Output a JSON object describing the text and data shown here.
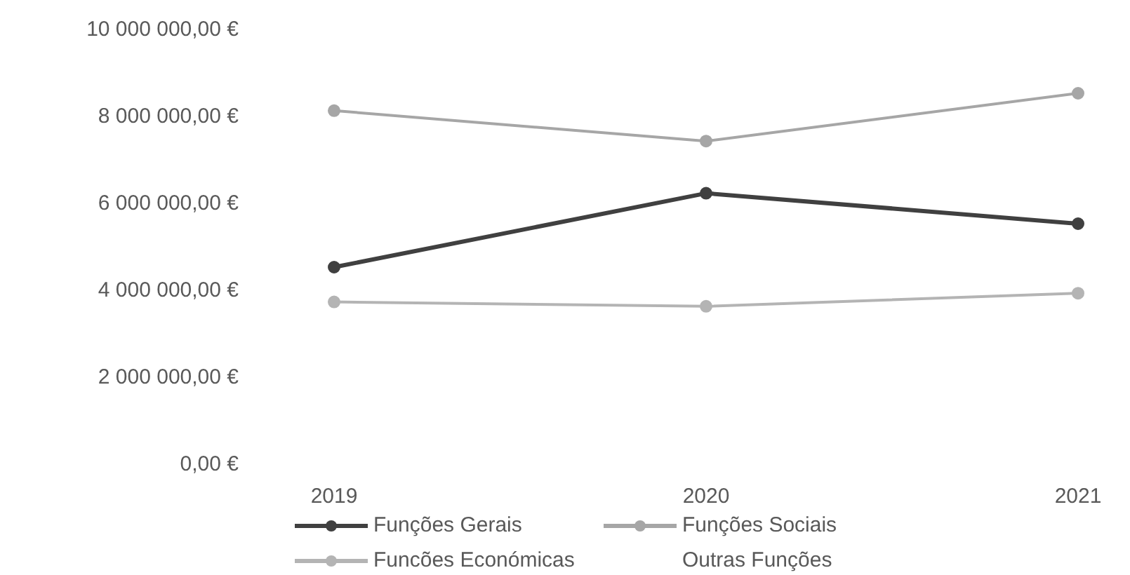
{
  "chart_data": {
    "type": "line",
    "categories": [
      "2019",
      "2020",
      "2021"
    ],
    "series": [
      {
        "name": "Funções Gerais",
        "color": "#404040",
        "values": [
          4500000,
          6200000,
          5500000
        ]
      },
      {
        "name": "Funções Sociais",
        "color": "#a6a6a6",
        "values": [
          8100000,
          7400000,
          8500000
        ]
      },
      {
        "name": "Funcões Económicas",
        "color": "#b4b4b4",
        "values": [
          3700000,
          3600000,
          3900000
        ]
      },
      {
        "name": "Outras Funções",
        "values": [
          null,
          null,
          null
        ]
      }
    ],
    "ylim": [
      0,
      10000000
    ],
    "yticks": [
      {
        "value": 0,
        "label": "0,00 €"
      },
      {
        "value": 2000000,
        "label": "2 000 000,00 €"
      },
      {
        "value": 4000000,
        "label": "4 000 000,00 €"
      },
      {
        "value": 6000000,
        "label": "6 000 000,00 €"
      },
      {
        "value": 8000000,
        "label": "8 000 000,00 €"
      },
      {
        "value": 10000000,
        "label": "10 000 000,00 €"
      }
    ],
    "grid": false,
    "legend": "bottom",
    "marker": "circle",
    "line_style": "solid"
  }
}
